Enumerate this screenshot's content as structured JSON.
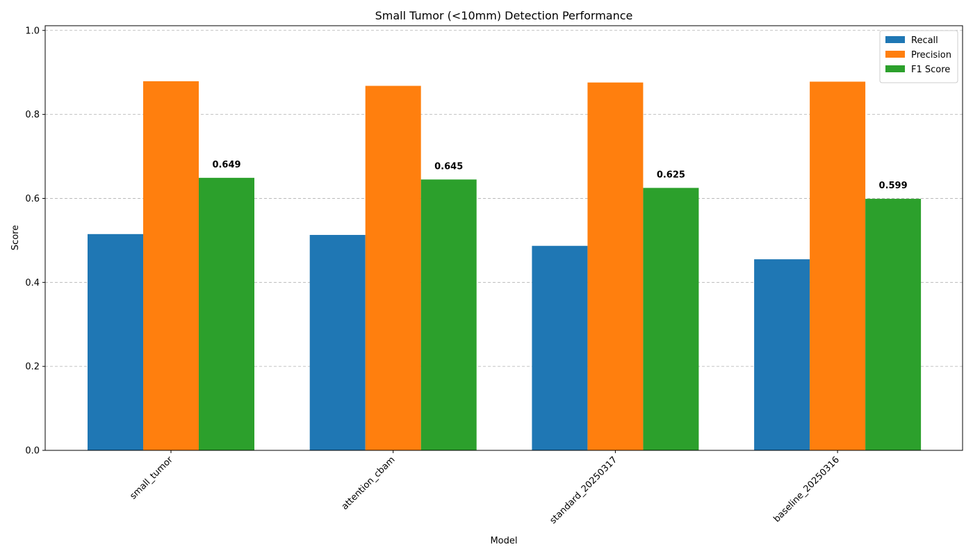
{
  "chart_data": {
    "type": "bar",
    "title": "Small Tumor (<10mm) Detection Performance",
    "xlabel": "Model",
    "ylabel": "Score",
    "ylim": [
      0,
      1.0
    ],
    "yticks": [
      "0.0",
      "0.2",
      "0.4",
      "0.6",
      "0.8",
      "1.0"
    ],
    "grid": "y-dashed",
    "legend_position": "top-right",
    "categories": [
      "small_tumor",
      "attention_cbam",
      "standard_20250317",
      "baseline_20250316"
    ],
    "series": [
      {
        "name": "Recall",
        "color": "#1f77b4",
        "values": [
          0.515,
          0.513,
          0.487,
          0.455
        ]
      },
      {
        "name": "Precision",
        "color": "#ff7f0e",
        "values": [
          0.879,
          0.868,
          0.876,
          0.878
        ]
      },
      {
        "name": "F1 Score",
        "color": "#2ca02c",
        "values": [
          0.649,
          0.645,
          0.625,
          0.599
        ]
      }
    ],
    "data_labels": {
      "series": "F1 Score",
      "texts": [
        "0.649",
        "0.645",
        "0.625",
        "0.599"
      ]
    }
  }
}
